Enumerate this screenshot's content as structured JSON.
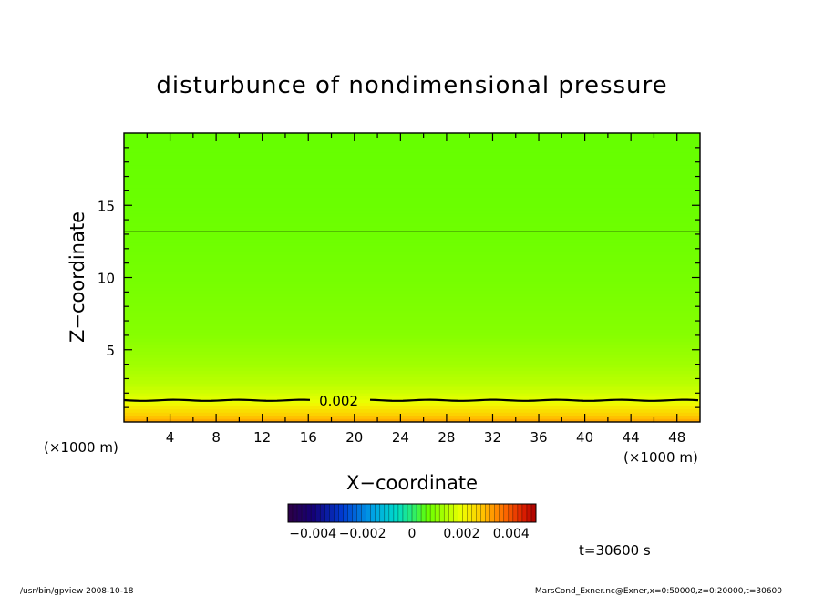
{
  "chart_data": {
    "type": "heatmap",
    "title": "disturbunce of nondimensional pressure",
    "xlabel": "X−coordinate",
    "ylabel": "Z−coordinate",
    "x_unit": "(×1000 m)",
    "y_unit": "(×1000 m)",
    "xlim": [
      0,
      50
    ],
    "ylim": [
      0,
      20
    ],
    "x_ticks": [
      4,
      8,
      12,
      16,
      20,
      24,
      28,
      32,
      36,
      40,
      44,
      48
    ],
    "y_ticks": [
      5,
      10,
      15
    ],
    "profile": {
      "z": [
        0,
        0.5,
        1.0,
        1.5,
        2.5,
        4,
        6,
        8,
        10,
        12,
        14,
        16,
        18,
        20
      ],
      "value": [
        0.0032,
        0.0027,
        0.0023,
        0.0019,
        0.0015,
        0.0012,
        0.00095,
        0.00085,
        0.00078,
        0.00072,
        0.00068,
        0.00065,
        0.00063,
        0.00062
      ]
    },
    "contours": [
      {
        "z": 1.5,
        "label": "0.002",
        "label_x": 16.5
      },
      {
        "z": 13.2,
        "label": "",
        "label_x": null
      }
    ],
    "colorbar": {
      "min": -0.005,
      "max": 0.005,
      "tick_labels": [
        "−0.004",
        "−0.002",
        "0",
        "0.002",
        "0.004"
      ],
      "tick_values": [
        -0.004,
        -0.002,
        0,
        0.002,
        0.004
      ]
    },
    "time_label": "t=30600 s",
    "footer_left": "/usr/bin/gpview  2008-10-18",
    "footer_right": "MarsCond_Exner.nc@Exner,x=0:50000,z=0:20000,t=30600"
  }
}
